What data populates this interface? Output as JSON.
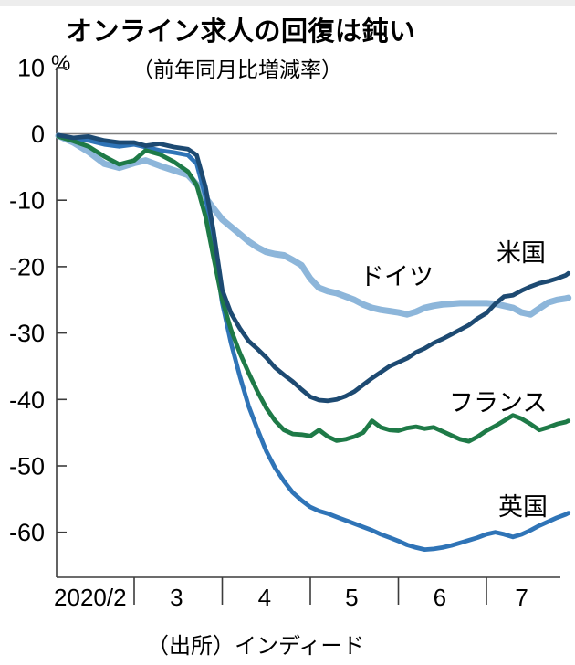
{
  "header": {
    "title": "オンライン求人の回復は鈍い",
    "subtitle": "（前年同月比増減率）",
    "unit": "%"
  },
  "footer": {
    "source": "（出所）インディード"
  },
  "chart_data": {
    "type": "line",
    "title": "オンライン求人の回復は鈍い",
    "subtitle": "（前年同月比増減率）",
    "ylabel": "%",
    "x_unit": "month of 2020 (fractional = day within month)",
    "ylim": [
      10,
      -67
    ],
    "grid": "zero-line only",
    "legend_position": "inline labels near lines",
    "y_ticks": [
      10,
      0,
      -10,
      -20,
      -30,
      -40,
      -50,
      -60
    ],
    "x_gridline_months": [
      3,
      4,
      5,
      6,
      7
    ],
    "x_labels": [
      {
        "m": 2.5,
        "label": "2020/2"
      },
      {
        "m": 3.48,
        "label": "3"
      },
      {
        "m": 4.48,
        "label": "4"
      },
      {
        "m": 5.47,
        "label": "5"
      },
      {
        "m": 6.47,
        "label": "6"
      },
      {
        "m": 7.4,
        "label": "7"
      }
    ],
    "x": [
      2.14,
      2.31,
      2.48,
      2.66,
      2.83,
      3.0,
      3.13,
      3.29,
      3.45,
      3.61,
      3.71,
      3.81,
      3.9,
      4.0,
      4.1,
      4.2,
      4.3,
      4.4,
      4.5,
      4.6,
      4.7,
      4.8,
      4.9,
      5.0,
      5.1,
      5.2,
      5.3,
      5.4,
      5.5,
      5.6,
      5.7,
      5.8,
      5.9,
      6.0,
      6.1,
      6.2,
      6.3,
      6.4,
      6.5,
      6.6,
      6.7,
      6.8,
      6.9,
      7.0,
      7.1,
      7.2,
      7.3,
      7.4,
      7.5,
      7.6,
      7.7,
      7.8,
      7.9,
      7.93
    ],
    "series": [
      {
        "key": "germany",
        "name": "ドイツ",
        "color": "#8db6da",
        "width": 7,
        "values": [
          -0.3,
          -1.3,
          -2.7,
          -4.5,
          -5.1,
          -4.4,
          -4.0,
          -4.8,
          -5.5,
          -6.2,
          -7.6,
          -9.6,
          -11.2,
          -12.9,
          -14.0,
          -15.1,
          -16.2,
          -17.1,
          -17.8,
          -18.1,
          -18.3,
          -19.0,
          -19.8,
          -21.8,
          -23.2,
          -23.7,
          -24.0,
          -24.5,
          -25.0,
          -25.7,
          -26.2,
          -26.5,
          -26.7,
          -26.9,
          -27.2,
          -26.8,
          -26.2,
          -25.9,
          -25.7,
          -25.6,
          -25.5,
          -25.5,
          -25.5,
          -25.5,
          -25.6,
          -25.9,
          -26.2,
          -26.9,
          -27.2,
          -26.3,
          -25.4,
          -25.0,
          -24.8,
          -24.7
        ]
      },
      {
        "key": "uk",
        "name": "英国",
        "color": "#2f74b7",
        "width": 4.8,
        "values": [
          -0.2,
          -0.8,
          -1.0,
          -1.6,
          -1.9,
          -1.6,
          -2.0,
          -2.5,
          -2.8,
          -3.2,
          -4.5,
          -9.5,
          -16.5,
          -25.5,
          -31.5,
          -36.5,
          -41.0,
          -44.5,
          -47.8,
          -50.3,
          -52.3,
          -54.0,
          -55.2,
          -56.2,
          -56.8,
          -57.2,
          -57.7,
          -58.2,
          -58.7,
          -59.2,
          -59.7,
          -60.3,
          -60.8,
          -61.3,
          -61.9,
          -62.3,
          -62.6,
          -62.5,
          -62.3,
          -62.0,
          -61.6,
          -61.2,
          -60.8,
          -60.3,
          -60.0,
          -60.3,
          -60.7,
          -60.3,
          -59.7,
          -59.0,
          -58.4,
          -57.8,
          -57.3,
          -57.1
        ]
      },
      {
        "key": "france",
        "name": "フランス",
        "color": "#1e7a47",
        "width": 4.8,
        "values": [
          -0.4,
          -1.1,
          -1.9,
          -3.4,
          -4.6,
          -4.0,
          -2.5,
          -3.1,
          -4.2,
          -5.7,
          -7.7,
          -12.5,
          -18.5,
          -25.0,
          -29.5,
          -33.0,
          -36.0,
          -38.8,
          -41.3,
          -43.2,
          -44.6,
          -45.2,
          -45.3,
          -45.5,
          -44.6,
          -45.6,
          -46.2,
          -46.0,
          -45.6,
          -45.0,
          -43.2,
          -44.2,
          -44.6,
          -44.7,
          -44.3,
          -44.1,
          -44.4,
          -44.2,
          -44.8,
          -45.4,
          -46.0,
          -46.3,
          -45.6,
          -44.7,
          -44.0,
          -43.2,
          -42.4,
          -42.9,
          -43.7,
          -44.6,
          -44.2,
          -43.7,
          -43.4,
          -43.2
        ]
      },
      {
        "key": "us",
        "name": "米国",
        "color": "#1d4a72",
        "width": 4.8,
        "values": [
          -0.2,
          -0.6,
          -0.4,
          -1.0,
          -1.3,
          -1.3,
          -1.8,
          -1.5,
          -2.0,
          -2.3,
          -3.2,
          -8.0,
          -14.5,
          -23.5,
          -27.0,
          -29.3,
          -31.2,
          -32.4,
          -33.7,
          -35.2,
          -36.3,
          -37.3,
          -38.5,
          -39.6,
          -40.1,
          -40.2,
          -40.0,
          -39.5,
          -38.8,
          -37.8,
          -36.8,
          -35.9,
          -35.0,
          -34.4,
          -33.8,
          -32.9,
          -32.3,
          -31.5,
          -30.9,
          -30.2,
          -29.5,
          -28.8,
          -27.8,
          -27.0,
          -25.6,
          -24.5,
          -24.3,
          -23.6,
          -23.0,
          -22.5,
          -22.2,
          -21.8,
          -21.3,
          -21.0
        ]
      }
    ],
    "axis_color": "#3c3c3c",
    "zero_line_color": "#7f7f7f"
  }
}
